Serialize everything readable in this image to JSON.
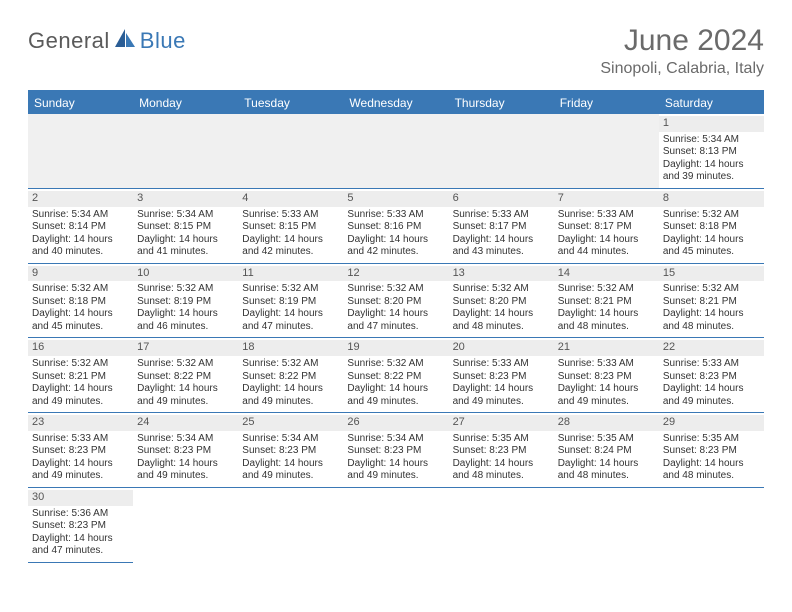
{
  "brand": {
    "word1": "General",
    "word2": "Blue"
  },
  "title": {
    "month_year": "June 2024",
    "location": "Sinopoli, Calabria, Italy"
  },
  "colors": {
    "accent": "#3a78b5",
    "header_bg": "#3a78b5",
    "header_text": "#ffffff",
    "daynum_bg": "#ededed",
    "page_bg": "#ffffff",
    "text": "#333333",
    "logo_gray": "#5a5a5a"
  },
  "dow": [
    "Sunday",
    "Monday",
    "Tuesday",
    "Wednesday",
    "Thursday",
    "Friday",
    "Saturday"
  ],
  "layout": {
    "columns": 7,
    "leading_blanks": 6
  },
  "labels": {
    "sunrise": "Sunrise:",
    "sunset": "Sunset:",
    "daylight": "Daylight:"
  },
  "days": [
    {
      "n": "1",
      "sunrise": "5:34 AM",
      "sunset": "8:13 PM",
      "daylight": "14 hours and 39 minutes."
    },
    {
      "n": "2",
      "sunrise": "5:34 AM",
      "sunset": "8:14 PM",
      "daylight": "14 hours and 40 minutes."
    },
    {
      "n": "3",
      "sunrise": "5:34 AM",
      "sunset": "8:15 PM",
      "daylight": "14 hours and 41 minutes."
    },
    {
      "n": "4",
      "sunrise": "5:33 AM",
      "sunset": "8:15 PM",
      "daylight": "14 hours and 42 minutes."
    },
    {
      "n": "5",
      "sunrise": "5:33 AM",
      "sunset": "8:16 PM",
      "daylight": "14 hours and 42 minutes."
    },
    {
      "n": "6",
      "sunrise": "5:33 AM",
      "sunset": "8:17 PM",
      "daylight": "14 hours and 43 minutes."
    },
    {
      "n": "7",
      "sunrise": "5:33 AM",
      "sunset": "8:17 PM",
      "daylight": "14 hours and 44 minutes."
    },
    {
      "n": "8",
      "sunrise": "5:32 AM",
      "sunset": "8:18 PM",
      "daylight": "14 hours and 45 minutes."
    },
    {
      "n": "9",
      "sunrise": "5:32 AM",
      "sunset": "8:18 PM",
      "daylight": "14 hours and 45 minutes."
    },
    {
      "n": "10",
      "sunrise": "5:32 AM",
      "sunset": "8:19 PM",
      "daylight": "14 hours and 46 minutes."
    },
    {
      "n": "11",
      "sunrise": "5:32 AM",
      "sunset": "8:19 PM",
      "daylight": "14 hours and 47 minutes."
    },
    {
      "n": "12",
      "sunrise": "5:32 AM",
      "sunset": "8:20 PM",
      "daylight": "14 hours and 47 minutes."
    },
    {
      "n": "13",
      "sunrise": "5:32 AM",
      "sunset": "8:20 PM",
      "daylight": "14 hours and 48 minutes."
    },
    {
      "n": "14",
      "sunrise": "5:32 AM",
      "sunset": "8:21 PM",
      "daylight": "14 hours and 48 minutes."
    },
    {
      "n": "15",
      "sunrise": "5:32 AM",
      "sunset": "8:21 PM",
      "daylight": "14 hours and 48 minutes."
    },
    {
      "n": "16",
      "sunrise": "5:32 AM",
      "sunset": "8:21 PM",
      "daylight": "14 hours and 49 minutes."
    },
    {
      "n": "17",
      "sunrise": "5:32 AM",
      "sunset": "8:22 PM",
      "daylight": "14 hours and 49 minutes."
    },
    {
      "n": "18",
      "sunrise": "5:32 AM",
      "sunset": "8:22 PM",
      "daylight": "14 hours and 49 minutes."
    },
    {
      "n": "19",
      "sunrise": "5:32 AM",
      "sunset": "8:22 PM",
      "daylight": "14 hours and 49 minutes."
    },
    {
      "n": "20",
      "sunrise": "5:33 AM",
      "sunset": "8:23 PM",
      "daylight": "14 hours and 49 minutes."
    },
    {
      "n": "21",
      "sunrise": "5:33 AM",
      "sunset": "8:23 PM",
      "daylight": "14 hours and 49 minutes."
    },
    {
      "n": "22",
      "sunrise": "5:33 AM",
      "sunset": "8:23 PM",
      "daylight": "14 hours and 49 minutes."
    },
    {
      "n": "23",
      "sunrise": "5:33 AM",
      "sunset": "8:23 PM",
      "daylight": "14 hours and 49 minutes."
    },
    {
      "n": "24",
      "sunrise": "5:34 AM",
      "sunset": "8:23 PM",
      "daylight": "14 hours and 49 minutes."
    },
    {
      "n": "25",
      "sunrise": "5:34 AM",
      "sunset": "8:23 PM",
      "daylight": "14 hours and 49 minutes."
    },
    {
      "n": "26",
      "sunrise": "5:34 AM",
      "sunset": "8:23 PM",
      "daylight": "14 hours and 49 minutes."
    },
    {
      "n": "27",
      "sunrise": "5:35 AM",
      "sunset": "8:23 PM",
      "daylight": "14 hours and 48 minutes."
    },
    {
      "n": "28",
      "sunrise": "5:35 AM",
      "sunset": "8:24 PM",
      "daylight": "14 hours and 48 minutes."
    },
    {
      "n": "29",
      "sunrise": "5:35 AM",
      "sunset": "8:23 PM",
      "daylight": "14 hours and 48 minutes."
    },
    {
      "n": "30",
      "sunrise": "5:36 AM",
      "sunset": "8:23 PM",
      "daylight": "14 hours and 47 minutes."
    }
  ]
}
